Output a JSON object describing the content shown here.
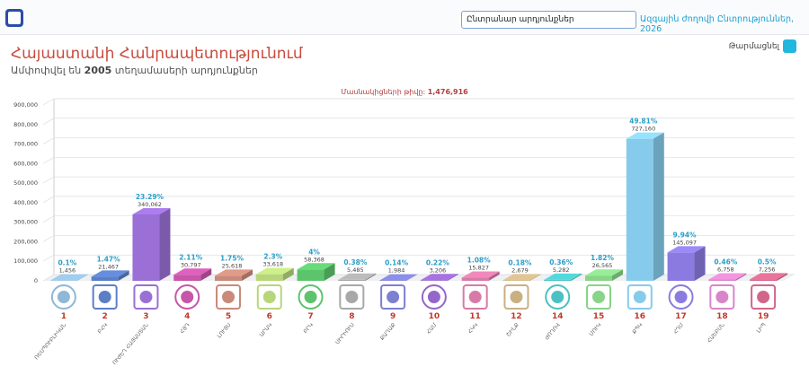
{
  "header": {
    "search": "Ընտրանար արդյունքներ",
    "election_link": "Ազգային ժողովի Ընտրություններ, 2026",
    "refresh": "Թարմացնել"
  },
  "title": "Հայաստանի Հանրապետությունում",
  "subtitle": {
    "before": "Ամփոփվել են",
    "count": "2005",
    "after": "տեղամասերի արդյունքներ"
  },
  "chart_data": {
    "type": "bar3d",
    "participants_label": "Մասնակիցների թիվը:",
    "participants": "1,476,916",
    "categories": [
      "1",
      "2",
      "3",
      "4",
      "5",
      "6",
      "7",
      "8",
      "9",
      "10",
      "11",
      "12",
      "14",
      "15",
      "16",
      "17",
      "18",
      "19"
    ],
    "names": [
      "ՌԵՍՊՈՒԲԼԻԿԱՆ",
      "ԲՀԿ",
      "ՈՒԺԵՂ ՀԱՅԱՍՏԱՆ",
      "ՀՅԴ",
      "ԼՈՒՅՍ",
      "ԱՐԱԿ",
      "ԲՐԿ",
      "ՍԻՐԻՈՒՍ",
      "ՔԱՂԱՔ",
      "ՀԱՄ",
      "ՀԿԿ",
      "ՇԻՆՔ",
      "ԺՈՂՈՎ",
      "ՄՈՒԿ",
      "ՔՊԿ",
      "ՀԴՄ",
      "ՀԱԵԲՍՆ",
      "ԼԻՊ"
    ],
    "values": [
      1456,
      21467,
      340062,
      30797,
      25618,
      33618,
      58368,
      5485,
      1984,
      3206,
      15827,
      2679,
      5282,
      26565,
      727160,
      145097,
      6758,
      7256
    ],
    "value_labels": [
      "1,456",
      "21,467",
      "340,062",
      "30,797",
      "25,618",
      "33,618",
      "58,368",
      "5,485",
      "1,984",
      "3,206",
      "15,827",
      "2,679",
      "5,282",
      "26,565",
      "727,160",
      "145,097",
      "6,758",
      "7,256"
    ],
    "share_labels": [
      "0.1%",
      "1.47%",
      "23.29%",
      "2.11%",
      "1.75%",
      "2.3%",
      "4%",
      "0.38%",
      "0.14%",
      "0.22%",
      "1.08%",
      "0.18%",
      "0.36%",
      "1.82%",
      "49.81%",
      "9.94%",
      "0.46%",
      "0.5%"
    ],
    "colors": [
      "#8fb7d6",
      "#5b7fc7",
      "#9a6fd6",
      "#c756a9",
      "#c98a7a",
      "#b7d67a",
      "#5cc46c",
      "#a8a8a8",
      "#7d7fd0",
      "#9566c9",
      "#d77aa7",
      "#c9b083",
      "#4cc1c4",
      "#88d488",
      "#86cbeb",
      "#8b7be0",
      "#d985c9",
      "#d2668a"
    ],
    "ylim": [
      0,
      900000
    ],
    "yticks": [
      0,
      {
        "value": 100000,
        "label": "100,000"
      },
      {
        "value": 200000,
        "label": "200,000"
      },
      {
        "value": 300000,
        "label": "300,000"
      },
      {
        "value": 400000,
        "label": "400,000"
      },
      {
        "value": 500000,
        "label": "500,000"
      },
      {
        "value": 600000,
        "label": "600,000"
      },
      {
        "value": 700000,
        "label": "700,000"
      },
      {
        "value": 800000,
        "label": "800,000"
      },
      {
        "value": 900000,
        "label": "900,000"
      }
    ],
    "grid": true
  }
}
